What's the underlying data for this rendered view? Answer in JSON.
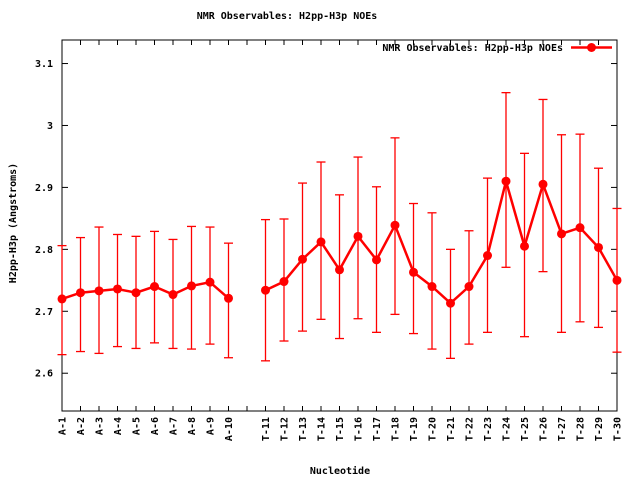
{
  "window": {
    "background": "#ffffff"
  },
  "chart_data": {
    "type": "line",
    "title": "NMR Observables: H2pp-H3p NOEs",
    "legend": {
      "label": "NMR Observables: H2pp-H3p NOEs",
      "position": "top-right-inside"
    },
    "xlabel": "Nucleotide",
    "ylabel": "H2pp-H3p (Angstroms)",
    "series_color": "#ff0000",
    "axis_color": "#000000",
    "background_color": "#ffffff",
    "grid": false,
    "error_bars": true,
    "ylim": [
      2.539,
      3.138
    ],
    "y_ticks": [
      {
        "v": 2.6,
        "label": "2.6"
      },
      {
        "v": 2.7,
        "label": "2.7"
      },
      {
        "v": 2.8,
        "label": "2.8"
      },
      {
        "v": 2.9,
        "label": "2.9"
      },
      {
        "v": 3.0,
        "label": "3"
      },
      {
        "v": 3.1,
        "label": "3.1"
      }
    ],
    "points": [
      {
        "label": "A-1",
        "value": 2.72,
        "lo": 2.63,
        "hi": 2.806
      },
      {
        "label": "A-2",
        "value": 2.73,
        "lo": 2.635,
        "hi": 2.819
      },
      {
        "label": "A-3",
        "value": 2.733,
        "lo": 2.632,
        "hi": 2.836
      },
      {
        "label": "A-4",
        "value": 2.736,
        "lo": 2.643,
        "hi": 2.824
      },
      {
        "label": "A-5",
        "value": 2.73,
        "lo": 2.64,
        "hi": 2.821
      },
      {
        "label": "A-6",
        "value": 2.74,
        "lo": 2.649,
        "hi": 2.829
      },
      {
        "label": "A-7",
        "value": 2.727,
        "lo": 2.64,
        "hi": 2.816
      },
      {
        "label": "A-8",
        "value": 2.741,
        "lo": 2.639,
        "hi": 2.837
      },
      {
        "label": "A-9",
        "value": 2.747,
        "lo": 2.647,
        "hi": 2.836
      },
      {
        "label": "A-10",
        "value": 2.721,
        "lo": 2.625,
        "hi": 2.81
      },
      {
        "label": "",
        "gap": true
      },
      {
        "label": "T-11",
        "value": 2.734,
        "lo": 2.62,
        "hi": 2.848
      },
      {
        "label": "T-12",
        "value": 2.748,
        "lo": 2.652,
        "hi": 2.849
      },
      {
        "label": "T-13",
        "value": 2.784,
        "lo": 2.668,
        "hi": 2.907
      },
      {
        "label": "T-14",
        "value": 2.812,
        "lo": 2.687,
        "hi": 2.941
      },
      {
        "label": "T-15",
        "value": 2.767,
        "lo": 2.656,
        "hi": 2.888
      },
      {
        "label": "T-16",
        "value": 2.821,
        "lo": 2.688,
        "hi": 2.949
      },
      {
        "label": "T-17",
        "value": 2.783,
        "lo": 2.666,
        "hi": 2.901
      },
      {
        "label": "T-18",
        "value": 2.839,
        "lo": 2.695,
        "hi": 2.98
      },
      {
        "label": "T-19",
        "value": 2.763,
        "lo": 2.664,
        "hi": 2.874
      },
      {
        "label": "T-20",
        "value": 2.74,
        "lo": 2.639,
        "hi": 2.859
      },
      {
        "label": "T-21",
        "value": 2.713,
        "lo": 2.624,
        "hi": 2.8
      },
      {
        "label": "T-22",
        "value": 2.74,
        "lo": 2.647,
        "hi": 2.83
      },
      {
        "label": "T-23",
        "value": 2.79,
        "lo": 2.666,
        "hi": 2.915
      },
      {
        "label": "T-24",
        "value": 2.91,
        "lo": 2.771,
        "hi": 3.053
      },
      {
        "label": "T-25",
        "value": 2.805,
        "lo": 2.659,
        "hi": 2.955
      },
      {
        "label": "T-26",
        "value": 2.905,
        "lo": 2.764,
        "hi": 3.042
      },
      {
        "label": "T-27",
        "value": 2.825,
        "lo": 2.666,
        "hi": 2.985
      },
      {
        "label": "T-28",
        "value": 2.835,
        "lo": 2.683,
        "hi": 2.986
      },
      {
        "label": "T-29",
        "value": 2.803,
        "lo": 2.674,
        "hi": 2.931
      },
      {
        "label": "T-30",
        "value": 2.75,
        "lo": 2.634,
        "hi": 2.866
      }
    ]
  }
}
